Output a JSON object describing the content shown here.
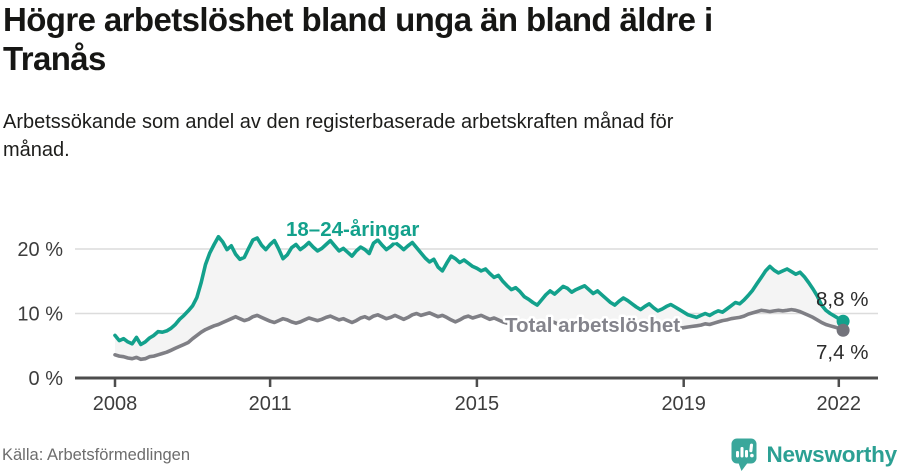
{
  "header": {
    "title": "Högre arbetslöshet bland unga än bland äldre i Tranås",
    "title_line1": "Högre arbetslöshet bland unga än bland äldre i",
    "title_line2": "Tranås",
    "subtitle_line1": "Arbetssökande som andel av den registerbaserade arbetskraften månad för",
    "subtitle_line2": "månad."
  },
  "footer": {
    "source": "Källa: Arbetsförmedlingen",
    "brand": "Newsworthy",
    "logo_icon": "bar-chart-speech-bubble-icon"
  },
  "colors": {
    "youth_line": "#13a18c",
    "total_line": "#7f7f85",
    "total_dot": "#73737b",
    "total_label": "#84848c",
    "area_fill": "#f4f4f4",
    "grid": "#dcdcdc",
    "axis": "#4d4d4d",
    "tick_text": "#3d3d3d",
    "end_label_text": "#2b2b2b",
    "brand_teal": "#2ba093",
    "title_text": "#161614",
    "source_text": "#6d6d6d"
  },
  "chart_data": {
    "type": "line",
    "title": "Högre arbetslöshet bland unga än bland äldre i Tranås",
    "subtitle": "Arbetssökande som andel av den registerbaserade arbetskraften månad för månad.",
    "unit": "%",
    "x_interval": "monthly",
    "x_start": "2008-01",
    "x_end": "2022-02",
    "x_tick_labels": [
      "2008",
      "2011",
      "2015",
      "2019",
      "2022"
    ],
    "y_tick_values": [
      0,
      10,
      20
    ],
    "y_tick_labels": [
      "0 %",
      "10 %",
      "20 %"
    ],
    "ylim": [
      0,
      26
    ],
    "grid": "horizontal",
    "legend_position": "inline-labels",
    "area_between_series": true,
    "series": [
      {
        "name": "18–24-åringar",
        "end_label": "8,8 %",
        "end_value": 8.8,
        "color": "#13a18c",
        "dot_color": "#13a18c",
        "label_color": "#13a18c",
        "values": [
          6.6,
          5.8,
          6.1,
          5.6,
          5.3,
          6.3,
          5.2,
          5.6,
          6.2,
          6.6,
          7.2,
          7.1,
          7.3,
          7.7,
          8.3,
          9.1,
          9.7,
          10.4,
          11.2,
          12.5,
          14.8,
          17.6,
          19.4,
          20.7,
          21.9,
          21.1,
          19.9,
          20.5,
          19.2,
          18.4,
          18.7,
          20.1,
          21.4,
          21.7,
          20.6,
          19.9,
          20.7,
          21.3,
          20.0,
          18.5,
          19.1,
          20.2,
          20.7,
          19.9,
          20.4,
          21.0,
          20.3,
          19.7,
          20.1,
          20.7,
          21.3,
          20.5,
          19.7,
          20.1,
          19.5,
          18.9,
          19.7,
          20.3,
          19.9,
          19.3,
          20.9,
          21.4,
          20.6,
          19.9,
          20.4,
          21.0,
          20.5,
          19.9,
          20.5,
          21.0,
          20.2,
          19.4,
          18.6,
          18.0,
          18.4,
          17.2,
          16.6,
          17.8,
          18.9,
          18.5,
          17.9,
          18.3,
          17.8,
          17.3,
          17.0,
          16.6,
          16.9,
          16.2,
          15.6,
          15.9,
          15.0,
          14.3,
          13.7,
          14.0,
          13.4,
          12.6,
          12.2,
          11.7,
          11.3,
          12.1,
          12.9,
          13.5,
          13.0,
          13.6,
          14.2,
          13.9,
          13.3,
          13.7,
          14.0,
          14.3,
          13.7,
          13.1,
          13.5,
          12.9,
          12.3,
          11.7,
          11.3,
          11.9,
          12.4,
          12.0,
          11.5,
          11.0,
          10.6,
          11.1,
          11.5,
          10.9,
          10.4,
          10.7,
          11.1,
          11.4,
          11.0,
          10.6,
          10.2,
          9.8,
          9.6,
          9.4,
          9.7,
          10.0,
          9.7,
          10.1,
          10.4,
          10.2,
          10.7,
          11.2,
          11.7,
          11.5,
          12.1,
          12.8,
          13.6,
          14.6,
          15.6,
          16.6,
          17.3,
          16.7,
          16.3,
          16.6,
          16.9,
          16.5,
          16.1,
          16.4,
          15.7,
          14.8,
          13.8,
          12.7,
          11.3,
          10.5,
          10.0,
          9.6,
          9.2,
          8.8
        ]
      },
      {
        "name": "Total arbetslöshet",
        "end_label": "7,4 %",
        "end_value": 7.4,
        "color": "#7f7f85",
        "dot_color": "#73737b",
        "label_color": "#84848c",
        "values": [
          3.6,
          3.4,
          3.3,
          3.1,
          3.0,
          3.2,
          2.9,
          3.0,
          3.3,
          3.4,
          3.6,
          3.8,
          4.0,
          4.3,
          4.6,
          4.9,
          5.2,
          5.5,
          6.1,
          6.6,
          7.1,
          7.5,
          7.8,
          8.1,
          8.3,
          8.6,
          8.9,
          9.2,
          9.5,
          9.2,
          8.9,
          9.1,
          9.5,
          9.7,
          9.4,
          9.1,
          8.8,
          8.6,
          8.9,
          9.2,
          9.0,
          8.7,
          8.5,
          8.7,
          9.0,
          9.3,
          9.1,
          8.9,
          9.1,
          9.4,
          9.6,
          9.3,
          9.0,
          9.2,
          8.9,
          8.6,
          8.9,
          9.3,
          9.5,
          9.2,
          9.6,
          9.8,
          9.5,
          9.2,
          9.4,
          9.7,
          9.4,
          9.1,
          9.4,
          9.8,
          10.0,
          9.7,
          9.9,
          10.1,
          9.8,
          9.5,
          9.7,
          9.4,
          9.0,
          8.7,
          9.0,
          9.4,
          9.6,
          9.3,
          9.5,
          9.7,
          9.4,
          9.1,
          9.3,
          9.0,
          8.7,
          8.5,
          8.8,
          9.1,
          8.9,
          8.6,
          8.8,
          9.0,
          8.7,
          8.4,
          8.6,
          8.9,
          8.6,
          8.3,
          8.6,
          8.8,
          8.5,
          8.3,
          8.5,
          8.7,
          8.4,
          8.2,
          8.4,
          8.6,
          8.3,
          8.0,
          8.2,
          8.5,
          8.3,
          8.1,
          8.0,
          7.8,
          7.6,
          7.8,
          8.0,
          7.7,
          7.5,
          7.7,
          7.9,
          8.1,
          7.9,
          7.7,
          7.8,
          7.9,
          8.0,
          8.1,
          8.2,
          8.4,
          8.3,
          8.5,
          8.7,
          8.9,
          9.0,
          9.2,
          9.3,
          9.4,
          9.6,
          9.9,
          10.1,
          10.3,
          10.5,
          10.4,
          10.3,
          10.4,
          10.5,
          10.4,
          10.5,
          10.6,
          10.5,
          10.3,
          10.0,
          9.7,
          9.4,
          9.0,
          8.6,
          8.3,
          8.1,
          7.9,
          7.7,
          7.4
        ]
      }
    ]
  }
}
